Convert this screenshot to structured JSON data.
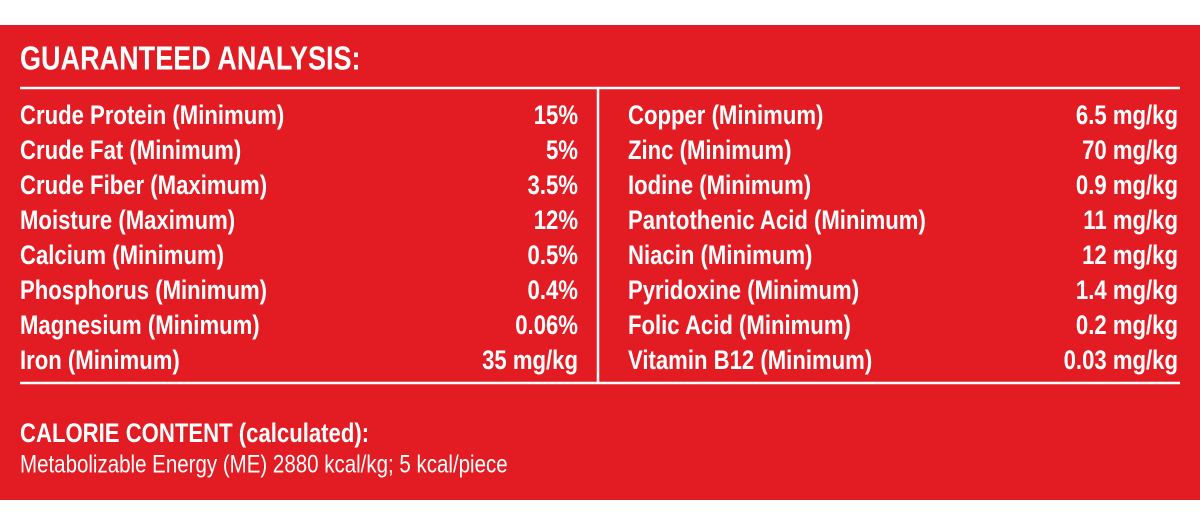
{
  "title": "GUARANTEED ANALYSIS:",
  "left": [
    {
      "label": "Crude Protein (Minimum)",
      "value": "15%"
    },
    {
      "label": "Crude Fat (Minimum)",
      "value": "5%"
    },
    {
      "label": "Crude Fiber (Maximum)",
      "value": "3.5%"
    },
    {
      "label": "Moisture (Maximum)",
      "value": "12%"
    },
    {
      "label": "Calcium (Minimum)",
      "value": "0.5%"
    },
    {
      "label": "Phosphorus (Minimum)",
      "value": "0.4%"
    },
    {
      "label": "Magnesium (Minimum)",
      "value": "0.06%"
    },
    {
      "label": "Iron (Minimum)",
      "value": "35 mg/kg"
    }
  ],
  "right": [
    {
      "label": "Copper (Minimum)",
      "value": "6.5 mg/kg"
    },
    {
      "label": "Zinc (Minimum)",
      "value": "70 mg/kg"
    },
    {
      "label": "Iodine (Minimum)",
      "value": "0.9 mg/kg"
    },
    {
      "label": "Pantothenic Acid (Minimum)",
      "value": "11 mg/kg"
    },
    {
      "label": "Niacin (Minimum)",
      "value": "12 mg/kg"
    },
    {
      "label": "Pyridoxine (Minimum)",
      "value": "1.4 mg/kg"
    },
    {
      "label": "Folic Acid (Minimum)",
      "value": "0.2 mg/kg"
    },
    {
      "label": "Vitamin B12 (Minimum)",
      "value": "0.03 mg/kg"
    }
  ],
  "calorie": {
    "heading": "CALORIE CONTENT (calculated):",
    "text": "Metabolizable Energy (ME) 2880 kcal/kg; 5 kcal/piece"
  }
}
